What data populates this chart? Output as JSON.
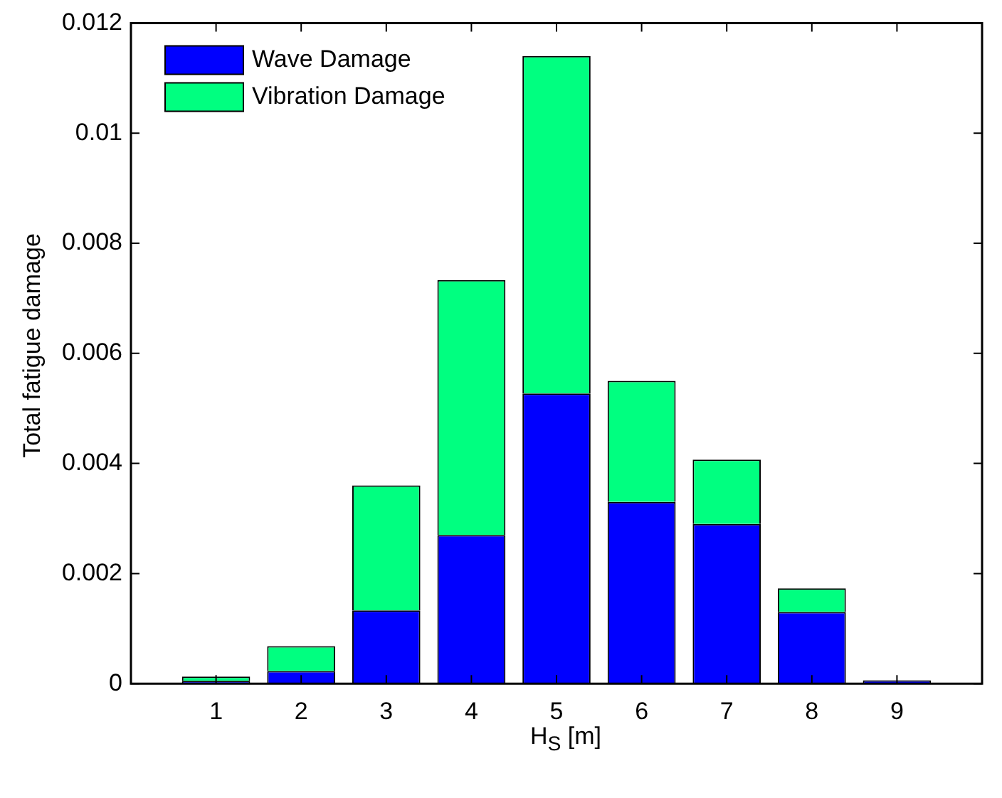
{
  "chart_data": {
    "type": "bar",
    "stacked": true,
    "xlabel": "H$_{S}$ [m]",
    "ylabel": "Total fatigue damage",
    "x": [
      1,
      2,
      3,
      4,
      5,
      6,
      7,
      8,
      9
    ],
    "xlim": [
      0,
      10
    ],
    "xticks": [
      1,
      2,
      3,
      4,
      5,
      6,
      7,
      8,
      9
    ],
    "ylim": [
      0,
      0.012
    ],
    "yticks": [
      0,
      0.002,
      0.004,
      0.006,
      0.008,
      0.01,
      0.012
    ],
    "series": [
      {
        "name": "Wave Damage",
        "color": "#0000ff",
        "values": [
          5e-05,
          0.00023,
          0.00133,
          0.0027,
          0.00527,
          0.0033,
          0.0029,
          0.0013,
          6e-05
        ]
      },
      {
        "name": "Vibration Damage",
        "color": "#00ff80",
        "values": [
          8e-05,
          0.00045,
          0.00227,
          0.00463,
          0.00613,
          0.0022,
          0.00117,
          0.00043,
          null
        ]
      }
    ],
    "legend": "top left",
    "grid": false
  }
}
